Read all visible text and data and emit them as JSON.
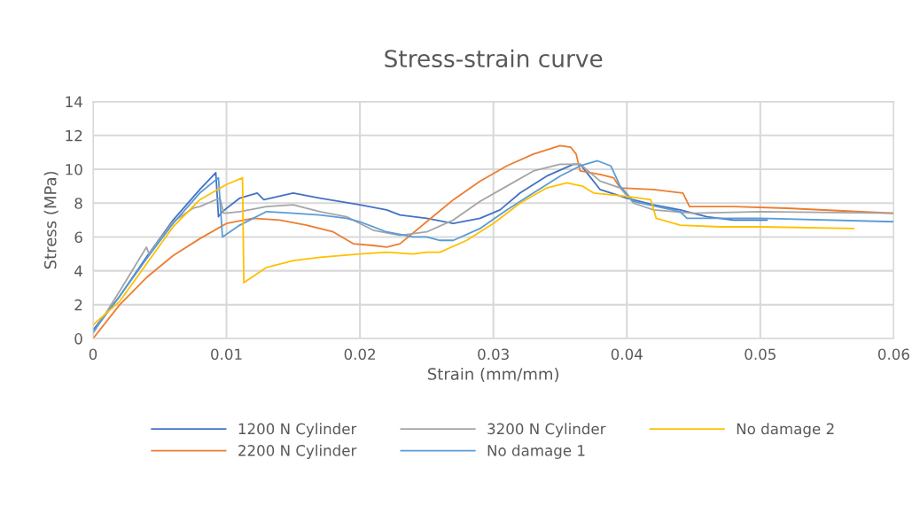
{
  "chart_data": {
    "type": "line",
    "title": "Stress-strain curve",
    "xlabel": "Strain (mm/mm)",
    "ylabel": "Stress (MPa)",
    "xlim": [
      0,
      0.06
    ],
    "xticks": [
      0,
      0.01,
      0.02,
      0.03,
      0.04,
      0.05,
      0.06
    ],
    "ylim": [
      0,
      14
    ],
    "yticks": [
      0,
      2,
      4,
      6,
      8,
      10,
      12,
      14
    ],
    "grid": true,
    "legend": "bottom",
    "marker": "none",
    "line_style": "solid",
    "series": [
      {
        "name": "1200 N Cylinder",
        "color": "#4472c4",
        "x": [
          0,
          0.002,
          0.004,
          0.006,
          0.008,
          0.0092,
          0.0094,
          0.0097,
          0.011,
          0.0123,
          0.0128,
          0.015,
          0.017,
          0.02,
          0.022,
          0.023,
          0.025,
          0.027,
          0.029,
          0.0305,
          0.032,
          0.034,
          0.036,
          0.0365,
          0.037,
          0.038,
          0.04,
          0.042,
          0.044,
          0.046,
          0.048,
          0.0505
        ],
        "values": [
          0.5,
          2.5,
          4.8,
          7.0,
          8.8,
          9.8,
          7.2,
          7.5,
          8.3,
          8.6,
          8.2,
          8.6,
          8.3,
          7.9,
          7.6,
          7.3,
          7.1,
          6.8,
          7.1,
          7.6,
          8.6,
          9.6,
          10.3,
          10.3,
          9.8,
          8.8,
          8.3,
          7.9,
          7.6,
          7.2,
          7.0,
          7.0
        ]
      },
      {
        "name": "2200 N Cylinder",
        "color": "#ed7d31",
        "x": [
          0,
          0.002,
          0.004,
          0.006,
          0.008,
          0.01,
          0.012,
          0.014,
          0.016,
          0.018,
          0.0195,
          0.021,
          0.022,
          0.023,
          0.025,
          0.027,
          0.029,
          0.031,
          0.033,
          0.035,
          0.0358,
          0.0362,
          0.0365,
          0.038,
          0.039,
          0.0395,
          0.042,
          0.0442,
          0.0447,
          0.048,
          0.052,
          0.06
        ],
        "values": [
          0,
          2.0,
          3.6,
          4.9,
          5.9,
          6.8,
          7.1,
          7.0,
          6.7,
          6.3,
          5.6,
          5.5,
          5.4,
          5.6,
          6.9,
          8.2,
          9.3,
          10.2,
          10.9,
          11.4,
          11.3,
          10.9,
          9.9,
          9.7,
          9.5,
          8.9,
          8.8,
          8.6,
          7.8,
          7.8,
          7.7,
          7.4
        ]
      },
      {
        "name": "3200 N Cylinder",
        "color": "#a5a5a5",
        "x": [
          0,
          0.002,
          0.004,
          0.0042,
          0.006,
          0.0075,
          0.008,
          0.0095,
          0.0098,
          0.011,
          0.013,
          0.015,
          0.017,
          0.019,
          0.021,
          0.023,
          0.025,
          0.027,
          0.029,
          0.031,
          0.033,
          0.035,
          0.0365,
          0.038,
          0.0395,
          0.0405,
          0.042,
          0.045,
          0.05,
          0.06
        ],
        "values": [
          0.3,
          2.8,
          5.4,
          5.0,
          6.9,
          7.7,
          7.8,
          8.3,
          7.4,
          7.5,
          7.8,
          7.9,
          7.5,
          7.2,
          6.4,
          6.1,
          6.3,
          7.0,
          8.1,
          9.0,
          9.9,
          10.3,
          10.3,
          9.3,
          8.9,
          8.0,
          7.6,
          7.4,
          7.5,
          7.4
        ]
      },
      {
        "name": "No damage 1",
        "color": "#5b9bd5",
        "x": [
          0,
          0.002,
          0.004,
          0.006,
          0.008,
          0.0094,
          0.0097,
          0.011,
          0.013,
          0.015,
          0.017,
          0.019,
          0.02,
          0.022,
          0.024,
          0.025,
          0.026,
          0.027,
          0.029,
          0.031,
          0.033,
          0.035,
          0.0365,
          0.0378,
          0.0388,
          0.0395,
          0.0405,
          0.044,
          0.0445,
          0.05,
          0.06
        ],
        "values": [
          0.4,
          2.5,
          4.7,
          6.8,
          8.6,
          9.5,
          6.0,
          6.7,
          7.5,
          7.4,
          7.3,
          7.1,
          6.9,
          6.3,
          6.0,
          6.0,
          5.8,
          5.8,
          6.5,
          7.6,
          8.6,
          9.6,
          10.2,
          10.5,
          10.2,
          9.0,
          8.1,
          7.5,
          7.1,
          7.1,
          6.9
        ]
      },
      {
        "name": "No damage 2",
        "color": "#ffc000",
        "x": [
          0,
          0.002,
          0.004,
          0.006,
          0.008,
          0.01,
          0.0112,
          0.0113,
          0.013,
          0.015,
          0.017,
          0.02,
          0.022,
          0.024,
          0.025,
          0.026,
          0.028,
          0.03,
          0.032,
          0.034,
          0.0355,
          0.0367,
          0.0375,
          0.04,
          0.0418,
          0.0422,
          0.044,
          0.047,
          0.05,
          0.057
        ],
        "values": [
          0.8,
          2.2,
          4.4,
          6.6,
          8.2,
          9.1,
          9.5,
          3.3,
          4.2,
          4.6,
          4.8,
          5.0,
          5.1,
          5.0,
          5.1,
          5.1,
          5.8,
          6.8,
          8.0,
          8.9,
          9.2,
          9.0,
          8.6,
          8.4,
          8.2,
          7.1,
          6.7,
          6.6,
          6.6,
          6.5
        ]
      }
    ]
  }
}
